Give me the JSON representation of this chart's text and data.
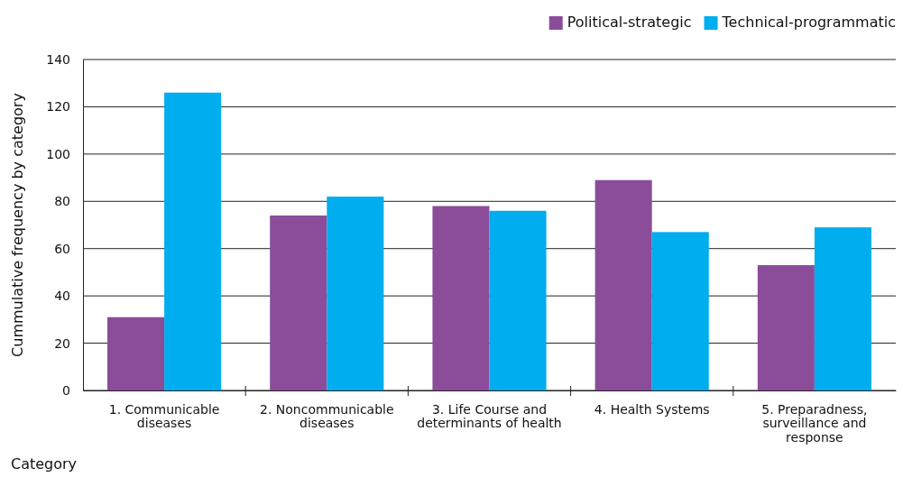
{
  "chart_data": {
    "type": "bar",
    "xlabel": "Category",
    "ylabel": "Cummulative frequency by category",
    "categories": [
      "1. Communicable diseases",
      "2. Noncommunicable diseases",
      "3. Life Course and determinants of health",
      "4. Health Systems",
      "5. Preparadness, surveillance and response"
    ],
    "series": [
      {
        "name": "Political-strategic",
        "color": "#8b4c9a",
        "values": [
          31,
          74,
          78,
          89,
          53
        ]
      },
      {
        "name": "Technical-programmatic",
        "color": "#00adee",
        "values": [
          126,
          82,
          76,
          67,
          69
        ]
      }
    ],
    "ylim": [
      0,
      140
    ],
    "yticks": [
      0,
      20,
      40,
      60,
      80,
      100,
      120,
      140
    ],
    "grid": "y",
    "legend": "top right"
  }
}
